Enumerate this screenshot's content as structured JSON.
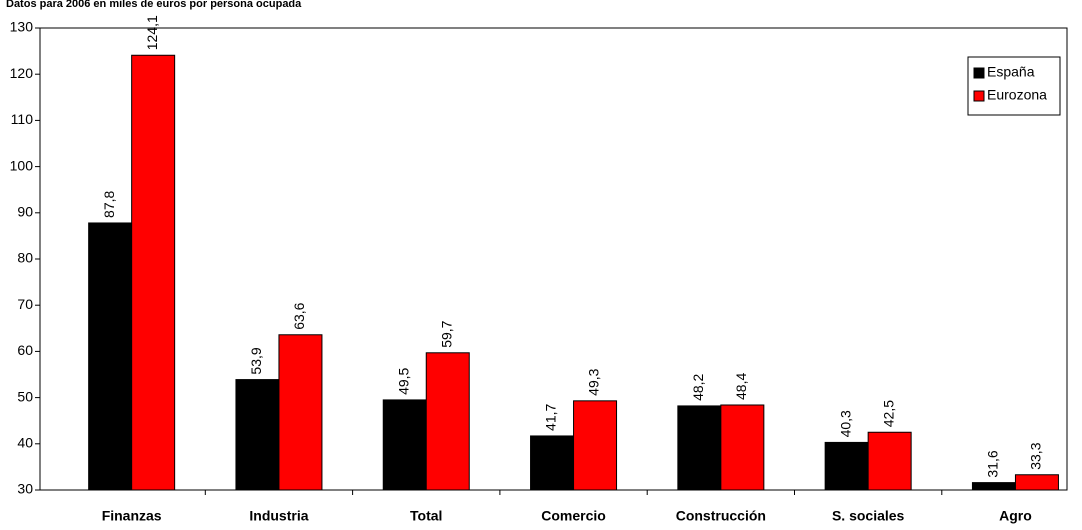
{
  "chart_data": {
    "type": "bar",
    "title": "Datos para 2006 en miles de euros por persona ocupada",
    "categories": [
      "Finanzas",
      "Industria",
      "Total",
      "Comercio",
      "Construcción",
      "S. sociales",
      "Agro"
    ],
    "series": [
      {
        "name": "España",
        "color": "#000000",
        "values": [
          87.8,
          53.9,
          49.5,
          41.7,
          48.2,
          40.3,
          31.6
        ],
        "value_labels": [
          "87,8",
          "53,9",
          "49,5",
          "41,7",
          "48,2",
          "40,3",
          "31,6"
        ]
      },
      {
        "name": "Eurozona",
        "color": "#ff0000",
        "values": [
          124.1,
          63.6,
          59.7,
          49.3,
          48.4,
          42.5,
          33.3
        ],
        "value_labels": [
          "124,1",
          "63,6",
          "59,7",
          "49,3",
          "48,4",
          "42,5",
          "33,3"
        ]
      }
    ],
    "ylim": [
      30,
      130
    ],
    "yticks": [
      30,
      40,
      50,
      60,
      70,
      80,
      90,
      100,
      110,
      120,
      130
    ],
    "grid": false,
    "legend": "upper right"
  }
}
